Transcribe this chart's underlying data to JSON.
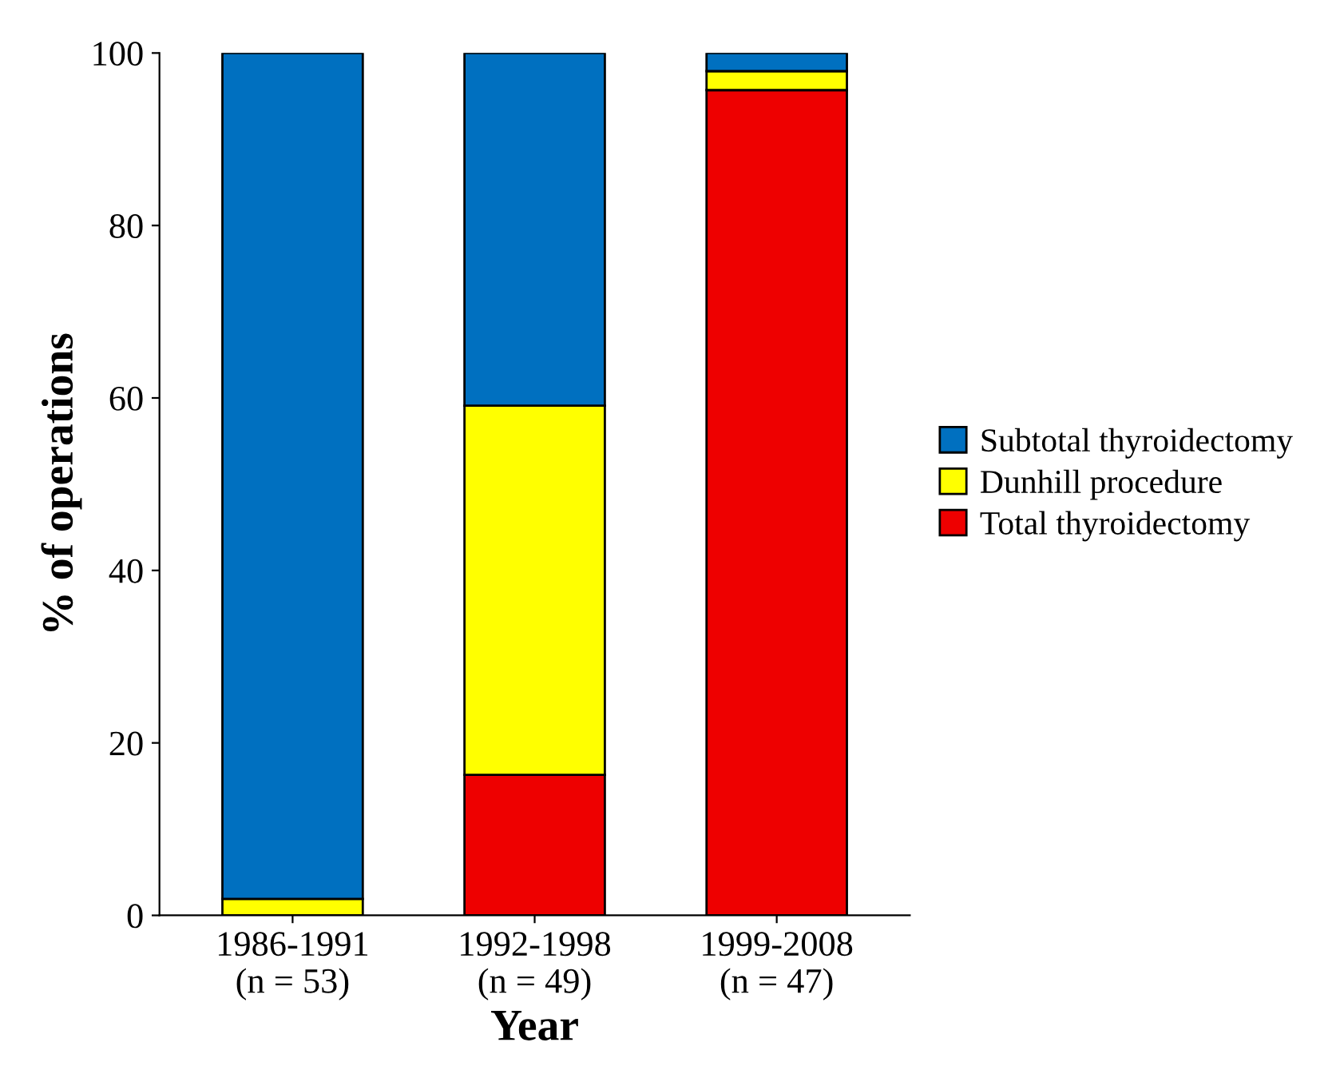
{
  "chart_data": {
    "type": "bar",
    "stacked": true,
    "xlabel": "Year",
    "ylabel": "% of operations",
    "categories": [
      "1986-1991\n(n = 53)",
      "1992-1998\n(n = 49)",
      "1999-2008\n(n = 47)"
    ],
    "series": [
      {
        "name": "Total thyroidectomy",
        "color": "#ee0000",
        "values": [
          0,
          16.3,
          95.7
        ]
      },
      {
        "name": "Dunhill procedure",
        "color": "#ffff00",
        "values": [
          1.9,
          42.8,
          2.2
        ]
      },
      {
        "name": "Subtotal thyroidectomy",
        "color": "#0070c0",
        "values": [
          98.1,
          40.9,
          2.1
        ]
      }
    ],
    "ylim": [
      0,
      100
    ],
    "yticks": [
      0,
      20,
      40,
      60,
      80,
      100
    ],
    "grid": false,
    "legend": "right"
  }
}
